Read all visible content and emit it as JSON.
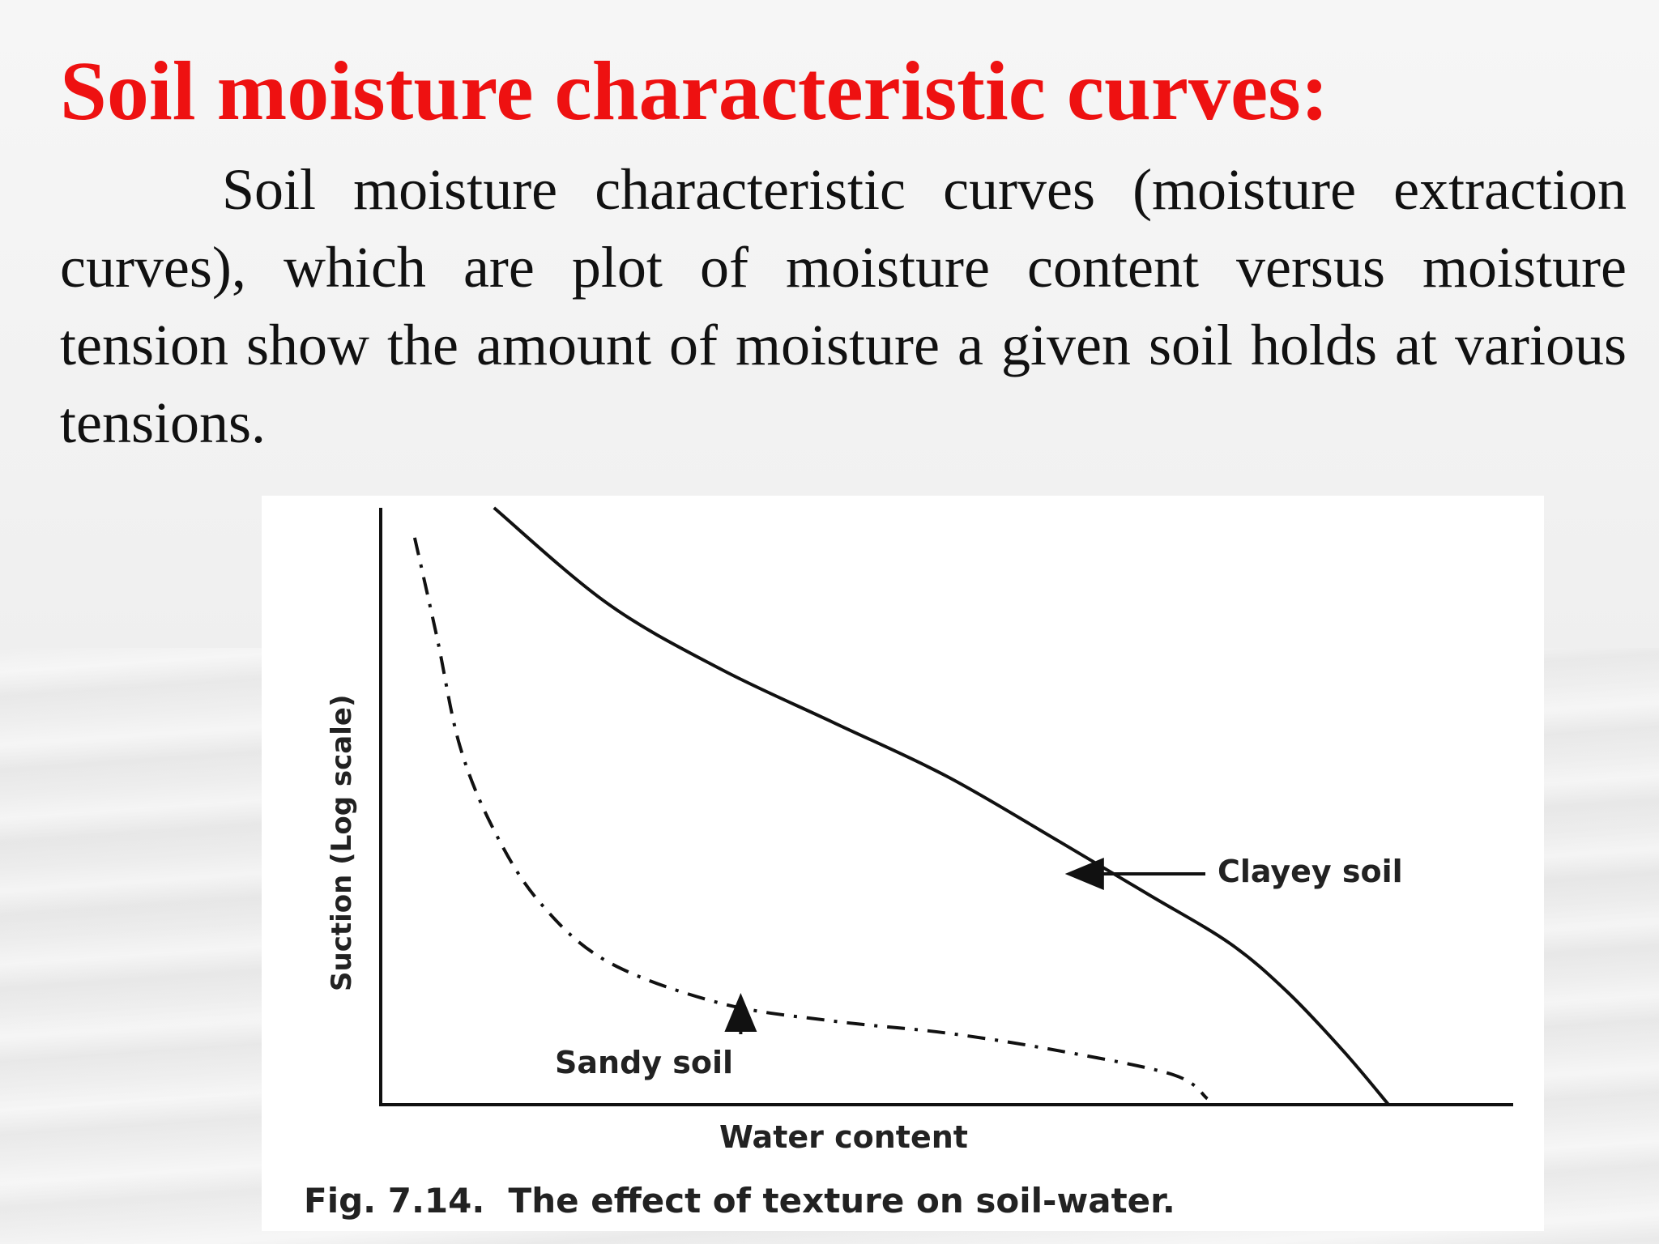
{
  "slide": {
    "title": "Soil moisture characteristic curves:",
    "body": "Soil moisture characteristic curves (moisture extraction curves), which are plot of moisture content versus moisture tension show the amount of moisture a given soil holds at various tensions."
  },
  "figure": {
    "caption": "Fig. 7.14.  The effect of texture on soil-water."
  },
  "chart_data": {
    "type": "line",
    "title": "",
    "xlabel": "Water content",
    "ylabel": "Suction (Log scale)",
    "yscale": "log",
    "grid": false,
    "legend": "none",
    "series": [
      {
        "name": "Clayey soil",
        "style": "solid",
        "x": [
          0.1,
          0.2,
          0.3,
          0.4,
          0.5,
          0.6,
          0.68,
          0.75,
          0.8,
          0.85,
          0.89
        ],
        "y": [
          1.0,
          0.84,
          0.73,
          0.64,
          0.55,
          0.44,
          0.35,
          0.27,
          0.19,
          0.09,
          0.0
        ]
      },
      {
        "name": "Sandy soil",
        "style": "dash-dot",
        "x": [
          0.03,
          0.05,
          0.07,
          0.1,
          0.14,
          0.2,
          0.3,
          0.4,
          0.5,
          0.6,
          0.7,
          0.73
        ],
        "y": [
          0.95,
          0.78,
          0.6,
          0.46,
          0.34,
          0.24,
          0.17,
          0.14,
          0.12,
          0.09,
          0.05,
          0.01
        ]
      }
    ],
    "annotations": [
      {
        "text": "Clayey soil",
        "series": "Clayey soil"
      },
      {
        "text": "Sandy soil",
        "series": "Sandy soil"
      }
    ]
  }
}
